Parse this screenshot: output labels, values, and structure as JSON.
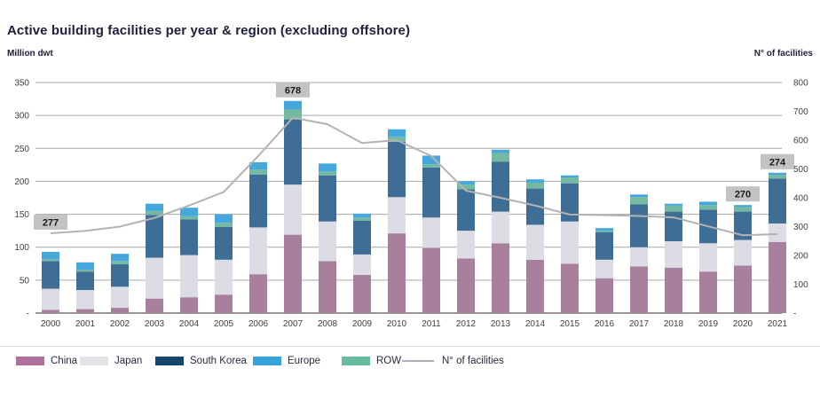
{
  "page_title": "Active building facilities per year & region (excluding offshore)",
  "chart_data": {
    "type": "bar",
    "subtype": "stacked-bars-with-line-overlay",
    "title": "Active building facilities per year & region (excluding offshore)",
    "left_axis": {
      "label": "Million dwt",
      "min": 0,
      "max": 350,
      "tick_step": 50,
      "zero_tick_text": "-"
    },
    "right_axis": {
      "label": "N° of facilities",
      "min": 0,
      "max": 800,
      "tick_step": 100,
      "zero_tick_text": "-"
    },
    "grid": "horizontal",
    "legend_position": "bottom",
    "categories": [
      "2000",
      "2001",
      "2002",
      "2003",
      "2004",
      "2005",
      "2006",
      "2007",
      "2008",
      "2009",
      "2010",
      "2011",
      "2012",
      "2013",
      "2014",
      "2015",
      "2016",
      "2017",
      "2018",
      "2019",
      "2020",
      "2021"
    ],
    "series": [
      {
        "name": "China",
        "color": "#a8809e",
        "legend_color": "#b0719f",
        "values": [
          5,
          6,
          8,
          22,
          24,
          28,
          59,
          119,
          79,
          58,
          121,
          99,
          83,
          106,
          81,
          75,
          53,
          71,
          69,
          63,
          72,
          108
        ]
      },
      {
        "name": "Japan",
        "color": "#dcdde4",
        "legend_color": "#e4e2e7",
        "values": [
          32,
          29,
          32,
          62,
          64,
          53,
          71,
          76,
          60,
          31,
          55,
          46,
          42,
          48,
          53,
          64,
          28,
          29,
          40,
          43,
          39,
          28
        ]
      },
      {
        "name": "South Korea",
        "color": "#3e6d95",
        "legend_color": "#15466b",
        "values": [
          42,
          28,
          34,
          65,
          54,
          50,
          80,
          99,
          70,
          51,
          84,
          76,
          63,
          76,
          55,
          58,
          42,
          65,
          45,
          51,
          43,
          68
        ]
      },
      {
        "name": "Europe",
        "color": "#45a7dc",
        "legend_color": "#36a3dc",
        "values": [
          11,
          11,
          11,
          11,
          13,
          13,
          11,
          13,
          12,
          6,
          11,
          13,
          5,
          5,
          5,
          3,
          4,
          4,
          3,
          5,
          3,
          3
        ]
      },
      {
        "name": "ROW",
        "color": "#74b9a2",
        "legend_color": "#66bd9e",
        "values": [
          3,
          3,
          5,
          6,
          5,
          6,
          8,
          15,
          6,
          5,
          8,
          5,
          7,
          13,
          9,
          9,
          2,
          11,
          9,
          7,
          7,
          6
        ]
      }
    ],
    "stack_order": [
      "China",
      "Japan",
      "South Korea",
      "ROW",
      "Europe"
    ],
    "line_series": {
      "name": "N° of facilities",
      "color": "#b3b3b3",
      "axis": "right",
      "values": [
        277,
        285,
        300,
        330,
        373,
        420,
        545,
        678,
        655,
        590,
        600,
        545,
        425,
        400,
        373,
        342,
        340,
        337,
        332,
        301,
        270,
        274
      ]
    },
    "annotations": [
      {
        "category": "2000",
        "text": "277"
      },
      {
        "category": "2007",
        "text": "678"
      },
      {
        "category": "2020",
        "text": "270"
      },
      {
        "category": "2021",
        "text": "274"
      }
    ],
    "annotation_style": {
      "bg": "#c3c3c3",
      "text_color": "#1a1a1a"
    },
    "legend_order": [
      "China",
      "Japan",
      "South Korea",
      "Europe",
      "ROW",
      "N° of facilities"
    ]
  }
}
